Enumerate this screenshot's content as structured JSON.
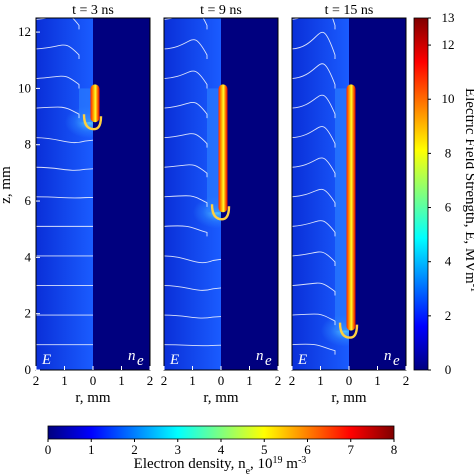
{
  "chart_data": {
    "type": "heatmap",
    "panels": [
      {
        "title": "t = 3 ns",
        "time_ns": 3,
        "streamer_tip_z_mm": 8.8
      },
      {
        "title": "t = 9 ns",
        "time_ns": 9,
        "streamer_tip_z_mm": 5.6
      },
      {
        "title": "t = 15 ns",
        "time_ns": 15,
        "streamer_tip_z_mm": 1.4
      }
    ],
    "electrode_tip_z_mm": 10.0,
    "ylabel": "z, mm",
    "ylim": [
      0,
      12.5
    ],
    "yticks": [
      "0",
      "2",
      "4",
      "6",
      "8",
      "10",
      "12"
    ],
    "yticks_values": [
      0,
      2,
      4,
      6,
      8,
      10,
      12
    ],
    "xlabel": "r, mm",
    "xlim": [
      -2,
      2
    ],
    "xticks": [
      "2",
      "1",
      "0",
      "1",
      "2"
    ],
    "xticks_values": [
      -2,
      -1,
      0,
      1,
      2
    ],
    "left_half_label": "E",
    "right_half_label": "n",
    "right_half_label_sub": "e",
    "colorbar_right": {
      "label": "Electric Field Strength, E, MVm",
      "label_sup": "-1",
      "range": [
        0,
        13
      ],
      "ticks": [
        "0",
        "2",
        "4",
        "6",
        "8",
        "10",
        "12",
        "13"
      ],
      "ticks_values": [
        0,
        2,
        4,
        6,
        8,
        10,
        12,
        13
      ]
    },
    "colorbar_bottom": {
      "label": "Electron density, n",
      "label_sub": "e",
      "label_mid": ", 10",
      "label_sup": "19",
      "label_unit": " m",
      "label_unit_sup": "-3",
      "range": [
        0,
        8
      ],
      "ticks": [
        "0",
        "1",
        "2",
        "3",
        "4",
        "5",
        "6",
        "7",
        "8"
      ],
      "ticks_values": [
        0,
        1,
        2,
        3,
        4,
        5,
        6,
        7,
        8
      ]
    },
    "colormap": "jet",
    "colormap_stops": [
      "#00007f",
      "#0000ff",
      "#007fff",
      "#00ffff",
      "#7fff7f",
      "#ffff00",
      "#ff7f00",
      "#ff0000",
      "#7f0000"
    ]
  }
}
